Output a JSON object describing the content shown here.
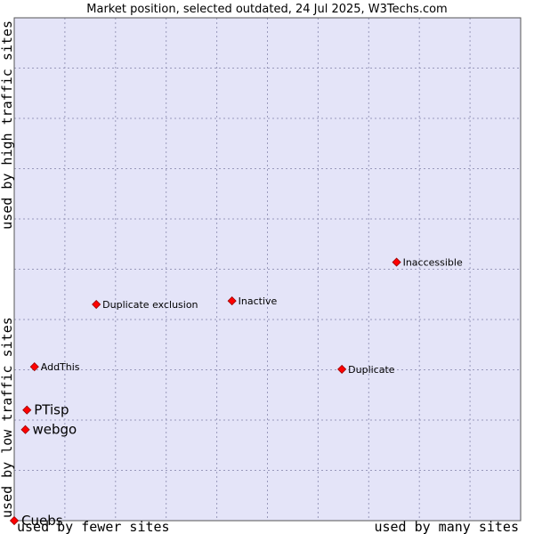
{
  "chart_data": {
    "type": "scatter",
    "title": "Market position, selected outdated, 24 Jul 2025, W3Techs.com",
    "xlabel_left": "used by fewer sites",
    "xlabel_right": "used by many sites",
    "ylabel_bottom": "used by low traffic sites",
    "ylabel_top": "used by high traffic sites",
    "xlim": [
      0,
      10
    ],
    "ylim": [
      0,
      10
    ],
    "grid": true,
    "colors": {
      "plot_background": "#e4e4f8",
      "grid": "#9999bb",
      "marker": "#ff0000",
      "marker_stroke": "#990000"
    },
    "points": [
      {
        "label": "Inaccessible",
        "x": 7.55,
        "y": 5.14,
        "emphasis": false
      },
      {
        "label": "Duplicate exclusion",
        "x": 1.62,
        "y": 4.3,
        "emphasis": false
      },
      {
        "label": "Inactive",
        "x": 4.3,
        "y": 4.37,
        "emphasis": false
      },
      {
        "label": "AddThis",
        "x": 0.4,
        "y": 3.06,
        "emphasis": false
      },
      {
        "label": "Duplicate",
        "x": 6.47,
        "y": 3.01,
        "emphasis": false
      },
      {
        "label": "PTisp",
        "x": 0.25,
        "y": 2.2,
        "emphasis": true
      },
      {
        "label": "webgo",
        "x": 0.22,
        "y": 1.81,
        "emphasis": true
      },
      {
        "label": "Cuebs",
        "x": 0.0,
        "y": 0.0,
        "emphasis": true
      }
    ]
  }
}
